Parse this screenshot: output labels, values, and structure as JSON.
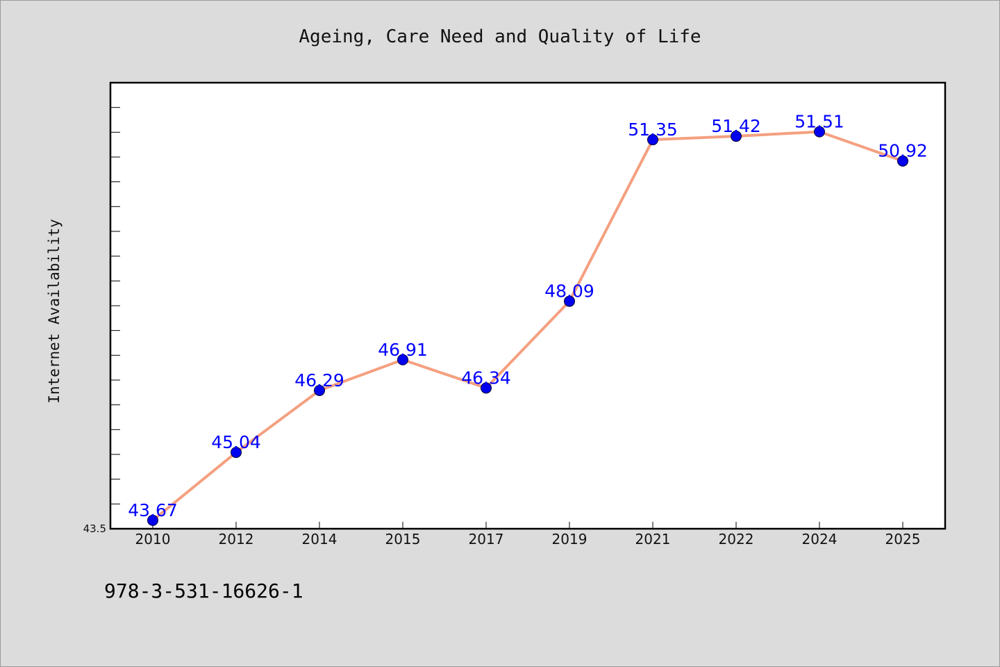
{
  "chart_data": {
    "type": "line",
    "title": "Ageing, Care Need and Quality of Life",
    "xlabel": "",
    "ylabel": "Internet Availability",
    "categories": [
      "2010",
      "2012",
      "2014",
      "2015",
      "2017",
      "2019",
      "2021",
      "2022",
      "2024",
      "2025"
    ],
    "series": [
      {
        "values": [
          43.67,
          45.04,
          46.29,
          46.91,
          46.34,
          48.09,
          51.35,
          51.42,
          51.51,
          50.92
        ],
        "data_labels": [
          "43.67",
          "45.04",
          "46.29",
          "46.91",
          "46.34",
          "48.09",
          "51.35",
          "51.42",
          "51.51",
          "50.92"
        ],
        "line_color": "#f4a080",
        "marker_color": "#0000ee"
      }
    ],
    "ylim": [
      43.5,
      52.5
    ],
    "y_tick_labels": [
      "43.5"
    ],
    "grid": false,
    "legend": "none",
    "label_color": "#0000ff"
  },
  "footer": {
    "identifier": "978-3-531-16626-1"
  }
}
